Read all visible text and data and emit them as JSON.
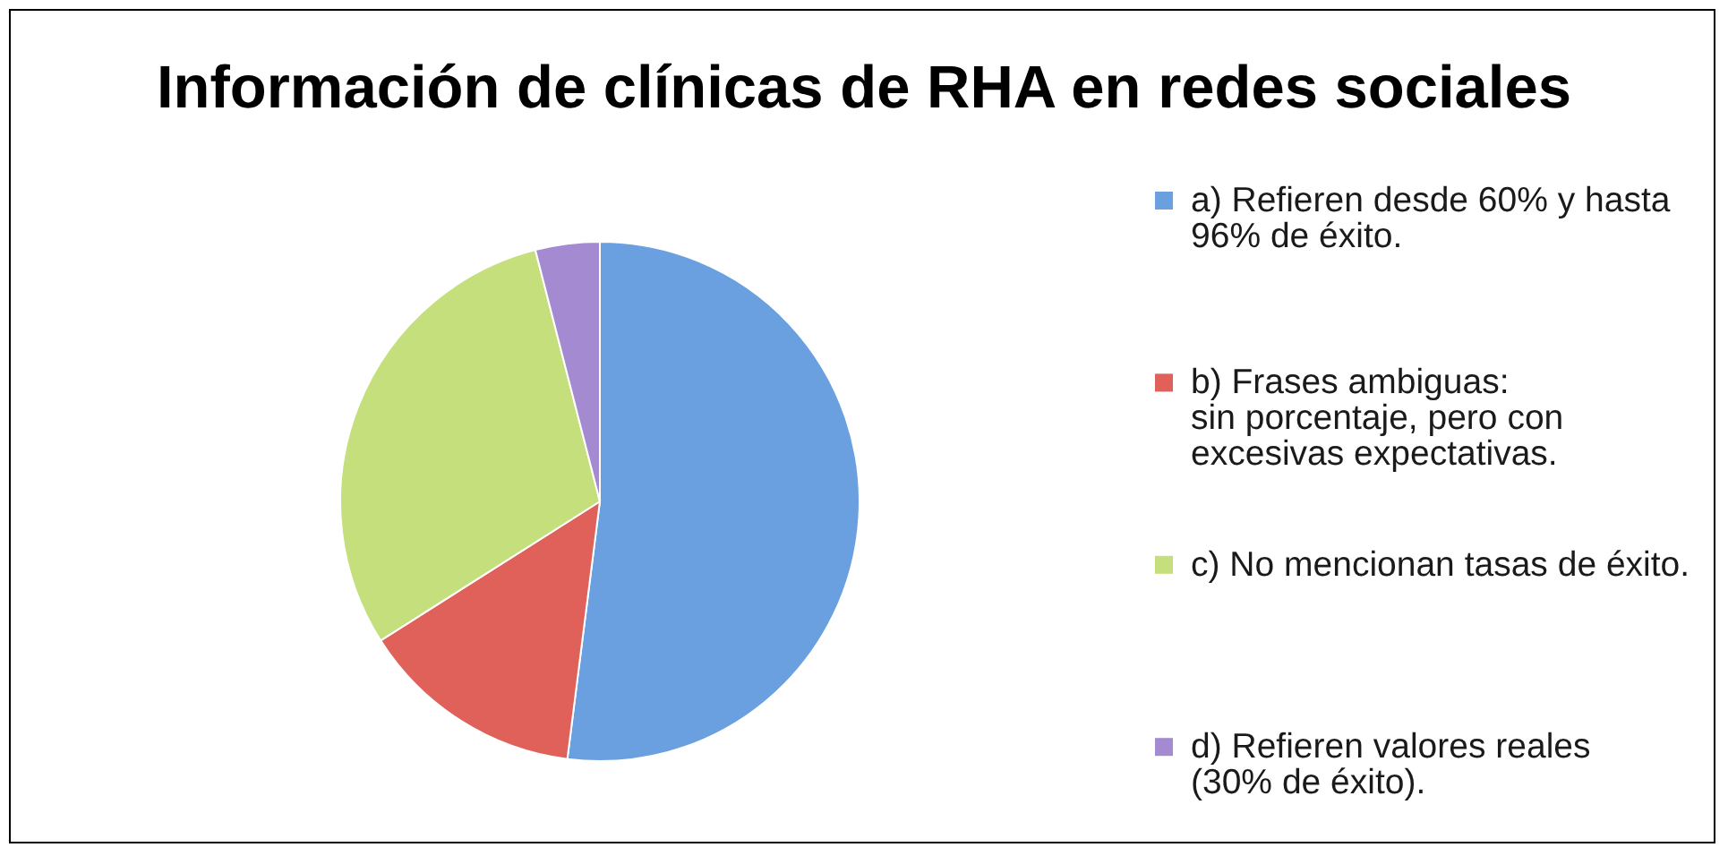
{
  "chart_data": {
    "type": "pie",
    "title": "Información de clínicas de RHA en redes sociales",
    "categories": [
      "a) Refieren desde 60% y hasta\n96% de éxito.",
      "b) Frases ambiguas:\nsin porcentaje, pero con\nexcesivas expectativas.",
      "c) No mencionan tasas de éxito.",
      "d) Refieren valores reales\n(30% de éxito)."
    ],
    "values": [
      52,
      14,
      30,
      4
    ],
    "colors": [
      "#6a9fe0",
      "#e0605a",
      "#c5df7c",
      "#a48ad0"
    ],
    "legend": "right"
  }
}
